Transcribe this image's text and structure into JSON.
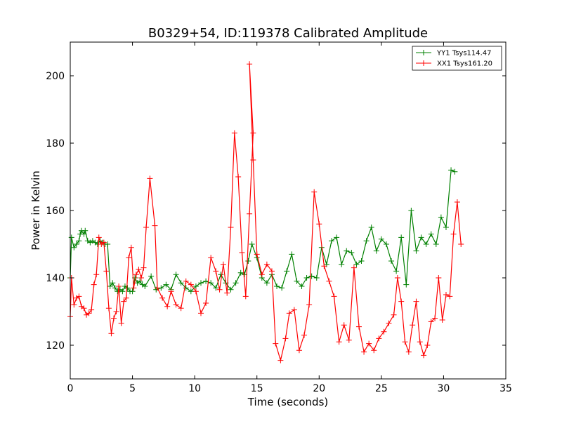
{
  "chart_data": {
    "type": "line",
    "title": "B0329+54, ID:119378 Calibrated Amplitude",
    "xlabel": "Time (seconds)",
    "ylabel": "Power in Kelvin",
    "xlim": [
      0,
      35
    ],
    "ylim": [
      110,
      210
    ],
    "xticks": [
      0,
      5,
      10,
      15,
      20,
      25,
      30,
      35
    ],
    "yticks": [
      120,
      140,
      160,
      180,
      200
    ],
    "grid": false,
    "legend_position": "top-right",
    "marker": "+",
    "series": [
      {
        "name": "YY1 Tsys114.47",
        "color": "#008000",
        "points": [
          [
            0.0,
            140
          ],
          [
            0.1,
            152
          ],
          [
            0.3,
            149
          ],
          [
            0.5,
            150
          ],
          [
            0.7,
            151
          ],
          [
            0.8,
            153
          ],
          [
            0.9,
            154
          ],
          [
            1.1,
            153
          ],
          [
            1.2,
            154
          ],
          [
            1.4,
            151
          ],
          [
            1.6,
            150.5
          ],
          [
            1.8,
            151
          ],
          [
            2.0,
            150.5
          ],
          [
            2.2,
            150
          ],
          [
            2.4,
            151
          ],
          [
            2.6,
            150.5
          ],
          [
            2.8,
            150
          ],
          [
            3.0,
            150
          ],
          [
            3.2,
            137.5
          ],
          [
            3.4,
            138.5
          ],
          [
            3.6,
            137
          ],
          [
            3.8,
            136
          ],
          [
            4.0,
            136.5
          ],
          [
            4.2,
            136
          ],
          [
            4.4,
            137.5
          ],
          [
            4.6,
            137
          ],
          [
            4.8,
            136
          ],
          [
            5.0,
            136
          ],
          [
            5.2,
            140
          ],
          [
            5.4,
            138.5
          ],
          [
            5.6,
            139
          ],
          [
            5.8,
            138
          ],
          [
            6.0,
            137.5
          ],
          [
            6.5,
            140.5
          ],
          [
            6.9,
            136.5
          ],
          [
            7.3,
            137
          ],
          [
            7.7,
            138
          ],
          [
            8.1,
            136.5
          ],
          [
            8.5,
            141
          ],
          [
            8.9,
            138.5
          ],
          [
            9.3,
            137
          ],
          [
            9.7,
            136
          ],
          [
            10.1,
            137.5
          ],
          [
            10.5,
            138.5
          ],
          [
            10.9,
            139
          ],
          [
            11.3,
            138.5
          ],
          [
            11.7,
            137
          ],
          [
            12.1,
            141
          ],
          [
            12.5,
            138.5
          ],
          [
            12.9,
            136.5
          ],
          [
            13.3,
            138.5
          ],
          [
            13.7,
            141.5
          ],
          [
            14.0,
            141
          ],
          [
            14.3,
            145
          ],
          [
            14.6,
            150
          ],
          [
            15.0,
            146
          ],
          [
            15.4,
            140
          ],
          [
            15.8,
            138.5
          ],
          [
            16.2,
            141
          ],
          [
            16.6,
            137.5
          ],
          [
            17.0,
            137
          ],
          [
            17.4,
            142
          ],
          [
            17.8,
            147
          ],
          [
            18.2,
            139
          ],
          [
            18.6,
            137.5
          ],
          [
            19.0,
            140
          ],
          [
            19.4,
            140.5
          ],
          [
            19.8,
            140
          ],
          [
            20.2,
            149
          ],
          [
            20.6,
            144
          ],
          [
            21.0,
            151
          ],
          [
            21.4,
            152
          ],
          [
            21.8,
            144
          ],
          [
            22.2,
            148
          ],
          [
            22.6,
            147.5
          ],
          [
            23.0,
            144
          ],
          [
            23.4,
            145
          ],
          [
            23.8,
            151
          ],
          [
            24.2,
            155
          ],
          [
            24.6,
            148
          ],
          [
            25.0,
            151.5
          ],
          [
            25.4,
            150
          ],
          [
            25.8,
            145
          ],
          [
            26.2,
            142
          ],
          [
            26.6,
            152
          ],
          [
            27.0,
            138
          ],
          [
            27.4,
            160
          ],
          [
            27.8,
            148
          ],
          [
            28.2,
            152
          ],
          [
            28.6,
            150
          ],
          [
            29.0,
            153
          ],
          [
            29.4,
            150
          ],
          [
            29.8,
            158
          ],
          [
            30.2,
            155
          ],
          [
            30.6,
            172
          ],
          [
            30.9,
            171.5
          ]
        ]
      },
      {
        "name": "XX1 Tsys161.20",
        "color": "#ff0000",
        "points": [
          [
            0.0,
            128.5
          ],
          [
            0.1,
            140
          ],
          [
            0.3,
            132
          ],
          [
            0.5,
            134
          ],
          [
            0.7,
            134.5
          ],
          [
            0.9,
            131.5
          ],
          [
            1.1,
            131
          ],
          [
            1.3,
            129
          ],
          [
            1.5,
            129.5
          ],
          [
            1.7,
            130.5
          ],
          [
            1.9,
            138
          ],
          [
            2.1,
            141
          ],
          [
            2.3,
            152
          ],
          [
            2.5,
            150
          ],
          [
            2.7,
            150.5
          ],
          [
            2.9,
            142
          ],
          [
            3.1,
            131
          ],
          [
            3.3,
            123.5
          ],
          [
            3.5,
            128
          ],
          [
            3.7,
            130
          ],
          [
            3.9,
            137.5
          ],
          [
            4.1,
            126.5
          ],
          [
            4.3,
            133
          ],
          [
            4.5,
            134
          ],
          [
            4.7,
            146
          ],
          [
            4.9,
            149
          ],
          [
            5.1,
            137
          ],
          [
            5.3,
            141
          ],
          [
            5.5,
            142.5
          ],
          [
            5.7,
            140
          ],
          [
            5.9,
            143
          ],
          [
            6.1,
            155
          ],
          [
            6.4,
            169.5
          ],
          [
            6.8,
            155.5
          ],
          [
            7.0,
            137
          ],
          [
            7.4,
            134
          ],
          [
            7.8,
            131.5
          ],
          [
            8.1,
            136
          ],
          [
            8.5,
            132
          ],
          [
            8.9,
            131
          ],
          [
            9.3,
            139
          ],
          [
            9.7,
            138
          ],
          [
            10.1,
            136
          ],
          [
            10.5,
            129.5
          ],
          [
            10.9,
            132.5
          ],
          [
            11.3,
            146
          ],
          [
            11.7,
            142
          ],
          [
            12.0,
            136.5
          ],
          [
            12.3,
            144
          ],
          [
            12.6,
            135.5
          ],
          [
            12.9,
            155
          ],
          [
            13.2,
            183
          ],
          [
            13.5,
            170
          ],
          [
            13.8,
            147.5
          ],
          [
            14.1,
            134.5
          ],
          [
            14.4,
            159
          ],
          [
            14.7,
            183
          ],
          [
            14.4,
            203.5
          ],
          [
            14.7,
            175
          ],
          [
            15.0,
            147
          ],
          [
            15.4,
            141
          ],
          [
            15.8,
            144
          ],
          [
            16.2,
            142
          ],
          [
            16.5,
            120.5
          ],
          [
            16.9,
            115.5
          ],
          [
            17.3,
            122
          ],
          [
            17.6,
            129.5
          ],
          [
            18.0,
            130.5
          ],
          [
            18.4,
            118.5
          ],
          [
            18.8,
            123
          ],
          [
            19.2,
            132
          ],
          [
            19.6,
            165.5
          ],
          [
            20.0,
            156
          ],
          [
            20.4,
            143.5
          ],
          [
            20.8,
            139
          ],
          [
            21.2,
            134.5
          ],
          [
            21.6,
            121
          ],
          [
            22.0,
            126
          ],
          [
            22.4,
            121.5
          ],
          [
            22.8,
            143
          ],
          [
            23.2,
            125.5
          ],
          [
            23.6,
            118
          ],
          [
            24.0,
            120.5
          ],
          [
            24.4,
            118.5
          ],
          [
            24.8,
            122
          ],
          [
            25.2,
            124
          ],
          [
            25.6,
            126.5
          ],
          [
            26.0,
            129
          ],
          [
            26.3,
            140
          ],
          [
            26.6,
            133
          ],
          [
            26.9,
            121
          ],
          [
            27.2,
            118
          ],
          [
            27.5,
            126
          ],
          [
            27.8,
            133
          ],
          [
            28.1,
            121
          ],
          [
            28.4,
            117
          ],
          [
            28.7,
            120
          ],
          [
            29.0,
            127
          ],
          [
            29.3,
            128
          ],
          [
            29.6,
            140
          ],
          [
            29.9,
            127.5
          ],
          [
            30.2,
            135
          ],
          [
            30.5,
            134.5
          ],
          [
            30.8,
            153
          ],
          [
            31.1,
            162.5
          ],
          [
            31.4,
            150
          ]
        ]
      }
    ]
  }
}
